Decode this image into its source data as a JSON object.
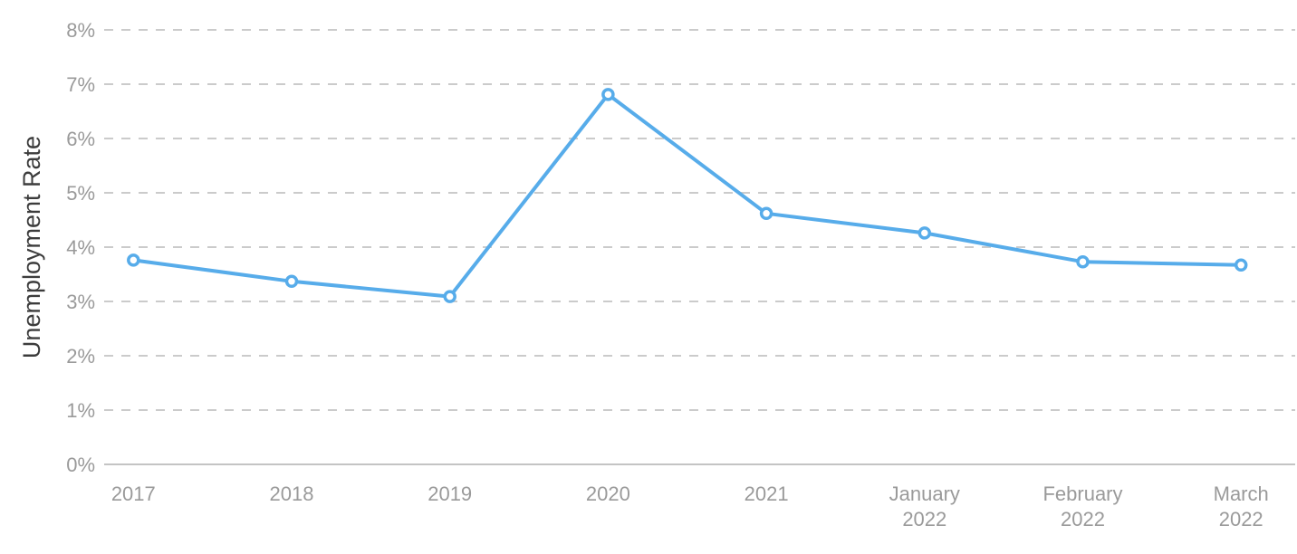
{
  "chart_data": {
    "type": "line",
    "title": "",
    "xlabel": "",
    "ylabel": "Unemployment Rate",
    "categories": [
      "2017",
      "2018",
      "2019",
      "2020",
      "2021",
      "January 2022",
      "February 2022",
      "March 2022"
    ],
    "x_tick_lines": [
      [
        "2017"
      ],
      [
        "2018"
      ],
      [
        "2019"
      ],
      [
        "2020"
      ],
      [
        "2021"
      ],
      [
        "January",
        "2022"
      ],
      [
        "February",
        "2022"
      ],
      [
        "March",
        "2022"
      ]
    ],
    "series": [
      {
        "name": "Unemployment Rate",
        "values": [
          3.76,
          3.37,
          3.09,
          6.81,
          4.62,
          4.26,
          3.73,
          3.67
        ]
      }
    ],
    "ylim": [
      0,
      8
    ],
    "ytick_step": 1,
    "yticks": [
      "0%",
      "1%",
      "2%",
      "3%",
      "4%",
      "5%",
      "6%",
      "7%",
      "8%"
    ],
    "grid": "horizontal-dashed",
    "baseline": "solid-at-zero",
    "legend_position": "none",
    "marker_style": "open-circle",
    "colors": {
      "line": "#57ACEA",
      "marker_fill": "#ffffff",
      "grid": "#cbcbcb",
      "axis": "#c4c4c4",
      "tick_labels": "#9a9a9a",
      "axis_title": "#3c3c3c",
      "background": "#ffffff"
    }
  }
}
